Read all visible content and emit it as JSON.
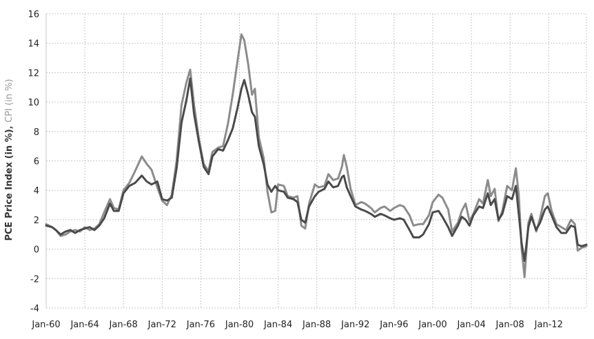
{
  "chart_data": {
    "type": "line",
    "title": "",
    "xlabel": "",
    "ylabel": {
      "part1": "PCE Price Index (in %)",
      "sep": ", ",
      "part2": "CPI (in %)"
    },
    "ylim": [
      -4,
      16
    ],
    "yticks": [
      "-4",
      "-2",
      "0",
      "2",
      "4",
      "6",
      "8",
      "10",
      "12",
      "14",
      "16"
    ],
    "xlim": [
      1960.0,
      2015.9
    ],
    "xticks": [
      {
        "label": "Jan-60",
        "x": 1960
      },
      {
        "label": "Jan-64",
        "x": 1964
      },
      {
        "label": "Jan-68",
        "x": 1968
      },
      {
        "label": "Jan-72",
        "x": 1972
      },
      {
        "label": "Jan-76",
        "x": 1976
      },
      {
        "label": "Jan-80",
        "x": 1980
      },
      {
        "label": "Jan-84",
        "x": 1984
      },
      {
        "label": "Jan-88",
        "x": 1988
      },
      {
        "label": "Jan-92",
        "x": 1992
      },
      {
        "label": "Jan-96",
        "x": 1996
      },
      {
        "label": "Jan-00",
        "x": 2000
      },
      {
        "label": "Jan-04",
        "x": 2004
      },
      {
        "label": "Jan-08",
        "x": 2008
      },
      {
        "label": "Jan-12",
        "x": 2012
      }
    ],
    "grid": true,
    "series": [
      {
        "color": "#8c8c8c",
        "points": [
          [
            1960.0,
            1.7
          ],
          [
            1960.6,
            1.5
          ],
          [
            1961.0,
            1.3
          ],
          [
            1961.5,
            0.9
          ],
          [
            1962.0,
            1.0
          ],
          [
            1962.5,
            1.2
          ],
          [
            1963.0,
            1.3
          ],
          [
            1963.5,
            1.2
          ],
          [
            1964.0,
            1.5
          ],
          [
            1964.5,
            1.3
          ],
          [
            1965.0,
            1.4
          ],
          [
            1965.5,
            1.7
          ],
          [
            1966.0,
            2.5
          ],
          [
            1966.6,
            3.4
          ],
          [
            1967.0,
            2.8
          ],
          [
            1967.5,
            2.7
          ],
          [
            1968.0,
            4.0
          ],
          [
            1968.6,
            4.5
          ],
          [
            1969.2,
            5.3
          ],
          [
            1969.9,
            6.3
          ],
          [
            1970.4,
            5.8
          ],
          [
            1970.9,
            5.4
          ],
          [
            1971.5,
            4.2
          ],
          [
            1972.0,
            3.3
          ],
          [
            1972.5,
            3.0
          ],
          [
            1973.0,
            3.7
          ],
          [
            1973.5,
            6.0
          ],
          [
            1974.0,
            9.8
          ],
          [
            1974.5,
            11.3
          ],
          [
            1974.9,
            12.2
          ],
          [
            1975.3,
            9.8
          ],
          [
            1975.8,
            7.5
          ],
          [
            1976.3,
            5.8
          ],
          [
            1976.8,
            5.3
          ],
          [
            1977.2,
            6.6
          ],
          [
            1977.8,
            6.9
          ],
          [
            1978.3,
            7.0
          ],
          [
            1978.8,
            8.5
          ],
          [
            1979.3,
            10.5
          ],
          [
            1979.8,
            12.8
          ],
          [
            1980.2,
            14.6
          ],
          [
            1980.5,
            14.2
          ],
          [
            1980.9,
            12.6
          ],
          [
            1981.3,
            10.5
          ],
          [
            1981.6,
            10.9
          ],
          [
            1982.0,
            7.6
          ],
          [
            1982.5,
            6.2
          ],
          [
            1982.9,
            3.9
          ],
          [
            1983.3,
            2.5
          ],
          [
            1983.7,
            2.6
          ],
          [
            1984.0,
            4.4
          ],
          [
            1984.6,
            4.3
          ],
          [
            1985.0,
            3.6
          ],
          [
            1985.6,
            3.5
          ],
          [
            1986.0,
            3.6
          ],
          [
            1986.4,
            1.6
          ],
          [
            1986.8,
            1.4
          ],
          [
            1987.2,
            3.1
          ],
          [
            1987.8,
            4.4
          ],
          [
            1988.2,
            4.2
          ],
          [
            1988.8,
            4.3
          ],
          [
            1989.2,
            5.1
          ],
          [
            1989.7,
            4.7
          ],
          [
            1990.2,
            4.8
          ],
          [
            1990.6,
            5.6
          ],
          [
            1990.8,
            6.4
          ],
          [
            1991.1,
            5.6
          ],
          [
            1991.5,
            4.1
          ],
          [
            1992.0,
            3.0
          ],
          [
            1992.6,
            3.2
          ],
          [
            1993.0,
            3.1
          ],
          [
            1993.6,
            2.8
          ],
          [
            1994.0,
            2.5
          ],
          [
            1994.6,
            2.8
          ],
          [
            1995.0,
            2.9
          ],
          [
            1995.6,
            2.6
          ],
          [
            1996.0,
            2.8
          ],
          [
            1996.6,
            3.0
          ],
          [
            1997.0,
            2.9
          ],
          [
            1997.6,
            2.3
          ],
          [
            1998.0,
            1.6
          ],
          [
            1998.6,
            1.7
          ],
          [
            1999.0,
            1.7
          ],
          [
            1999.6,
            2.3
          ],
          [
            2000.0,
            3.2
          ],
          [
            2000.6,
            3.7
          ],
          [
            2001.0,
            3.5
          ],
          [
            2001.6,
            2.7
          ],
          [
            2002.0,
            1.2
          ],
          [
            2002.6,
            1.8
          ],
          [
            2003.0,
            2.6
          ],
          [
            2003.4,
            3.1
          ],
          [
            2003.8,
            1.9
          ],
          [
            2004.2,
            2.4
          ],
          [
            2004.8,
            3.4
          ],
          [
            2005.2,
            3.1
          ],
          [
            2005.7,
            4.7
          ],
          [
            2006.0,
            3.6
          ],
          [
            2006.4,
            4.1
          ],
          [
            2006.8,
            1.9
          ],
          [
            2007.2,
            2.6
          ],
          [
            2007.7,
            4.3
          ],
          [
            2008.2,
            4.0
          ],
          [
            2008.6,
            5.5
          ],
          [
            2008.9,
            3.7
          ],
          [
            2009.2,
            0.0
          ],
          [
            2009.5,
            -1.9
          ],
          [
            2009.9,
            1.8
          ],
          [
            2010.2,
            2.4
          ],
          [
            2010.7,
            1.2
          ],
          [
            2011.1,
            2.1
          ],
          [
            2011.6,
            3.6
          ],
          [
            2011.9,
            3.8
          ],
          [
            2012.3,
            2.6
          ],
          [
            2012.8,
            1.7
          ],
          [
            2013.3,
            1.5
          ],
          [
            2013.8,
            1.3
          ],
          [
            2014.3,
            2.0
          ],
          [
            2014.7,
            1.7
          ],
          [
            2015.0,
            -0.1
          ],
          [
            2015.4,
            0.1
          ],
          [
            2015.9,
            0.2
          ]
        ]
      },
      {
        "color": "#4a4a4a",
        "points": [
          [
            1960.0,
            1.6
          ],
          [
            1960.6,
            1.5
          ],
          [
            1961.0,
            1.3
          ],
          [
            1961.5,
            1.0
          ],
          [
            1962.0,
            1.2
          ],
          [
            1962.5,
            1.3
          ],
          [
            1963.0,
            1.1
          ],
          [
            1963.5,
            1.3
          ],
          [
            1964.0,
            1.4
          ],
          [
            1964.5,
            1.5
          ],
          [
            1965.0,
            1.3
          ],
          [
            1965.5,
            1.6
          ],
          [
            1966.0,
            2.1
          ],
          [
            1966.6,
            3.1
          ],
          [
            1967.0,
            2.6
          ],
          [
            1967.5,
            2.6
          ],
          [
            1968.0,
            3.8
          ],
          [
            1968.6,
            4.3
          ],
          [
            1969.2,
            4.5
          ],
          [
            1969.9,
            5.0
          ],
          [
            1970.4,
            4.6
          ],
          [
            1970.9,
            4.4
          ],
          [
            1971.5,
            4.6
          ],
          [
            1972.0,
            3.4
          ],
          [
            1972.5,
            3.3
          ],
          [
            1973.0,
            3.5
          ],
          [
            1973.5,
            5.5
          ],
          [
            1974.0,
            8.6
          ],
          [
            1974.5,
            10.1
          ],
          [
            1974.9,
            11.6
          ],
          [
            1975.3,
            9.2
          ],
          [
            1975.8,
            7.3
          ],
          [
            1976.3,
            5.6
          ],
          [
            1976.8,
            5.1
          ],
          [
            1977.2,
            6.3
          ],
          [
            1977.8,
            6.8
          ],
          [
            1978.3,
            6.7
          ],
          [
            1978.8,
            7.4
          ],
          [
            1979.3,
            8.2
          ],
          [
            1979.8,
            9.6
          ],
          [
            1980.2,
            10.9
          ],
          [
            1980.5,
            11.5
          ],
          [
            1980.9,
            10.5
          ],
          [
            1981.3,
            9.3
          ],
          [
            1981.6,
            9.0
          ],
          [
            1982.0,
            7.0
          ],
          [
            1982.5,
            5.8
          ],
          [
            1982.9,
            4.4
          ],
          [
            1983.3,
            3.9
          ],
          [
            1983.7,
            4.3
          ],
          [
            1984.0,
            4.0
          ],
          [
            1984.6,
            3.9
          ],
          [
            1985.0,
            3.5
          ],
          [
            1985.6,
            3.4
          ],
          [
            1986.0,
            3.2
          ],
          [
            1986.4,
            2.0
          ],
          [
            1986.8,
            1.8
          ],
          [
            1987.2,
            2.9
          ],
          [
            1987.8,
            3.6
          ],
          [
            1988.2,
            3.9
          ],
          [
            1988.8,
            4.1
          ],
          [
            1989.2,
            4.6
          ],
          [
            1989.7,
            4.2
          ],
          [
            1990.2,
            4.3
          ],
          [
            1990.6,
            4.9
          ],
          [
            1990.8,
            5.0
          ],
          [
            1991.1,
            4.2
          ],
          [
            1991.5,
            3.6
          ],
          [
            1992.0,
            2.9
          ],
          [
            1992.6,
            2.7
          ],
          [
            1993.0,
            2.6
          ],
          [
            1993.6,
            2.4
          ],
          [
            1994.0,
            2.2
          ],
          [
            1994.6,
            2.4
          ],
          [
            1995.0,
            2.3
          ],
          [
            1995.6,
            2.1
          ],
          [
            1996.0,
            2.0
          ],
          [
            1996.6,
            2.1
          ],
          [
            1997.0,
            2.0
          ],
          [
            1997.6,
            1.3
          ],
          [
            1998.0,
            0.8
          ],
          [
            1998.6,
            0.8
          ],
          [
            1999.0,
            1.0
          ],
          [
            1999.6,
            1.7
          ],
          [
            2000.0,
            2.5
          ],
          [
            2000.6,
            2.6
          ],
          [
            2001.0,
            2.2
          ],
          [
            2001.6,
            1.5
          ],
          [
            2002.0,
            0.9
          ],
          [
            2002.6,
            1.6
          ],
          [
            2003.0,
            2.2
          ],
          [
            2003.4,
            2.0
          ],
          [
            2003.8,
            1.6
          ],
          [
            2004.2,
            2.3
          ],
          [
            2004.8,
            2.9
          ],
          [
            2005.2,
            2.8
          ],
          [
            2005.7,
            3.8
          ],
          [
            2006.0,
            3.0
          ],
          [
            2006.4,
            3.4
          ],
          [
            2006.8,
            2.0
          ],
          [
            2007.2,
            2.4
          ],
          [
            2007.7,
            3.6
          ],
          [
            2008.2,
            3.4
          ],
          [
            2008.6,
            4.3
          ],
          [
            2008.9,
            2.4
          ],
          [
            2009.2,
            0.4
          ],
          [
            2009.5,
            -0.8
          ],
          [
            2009.9,
            1.5
          ],
          [
            2010.2,
            2.2
          ],
          [
            2010.7,
            1.3
          ],
          [
            2011.1,
            1.8
          ],
          [
            2011.6,
            2.7
          ],
          [
            2011.9,
            2.9
          ],
          [
            2012.3,
            2.3
          ],
          [
            2012.8,
            1.5
          ],
          [
            2013.3,
            1.1
          ],
          [
            2013.8,
            1.1
          ],
          [
            2014.3,
            1.6
          ],
          [
            2014.7,
            1.5
          ],
          [
            2015.0,
            0.3
          ],
          [
            2015.4,
            0.2
          ],
          [
            2015.9,
            0.3
          ]
        ]
      }
    ]
  }
}
